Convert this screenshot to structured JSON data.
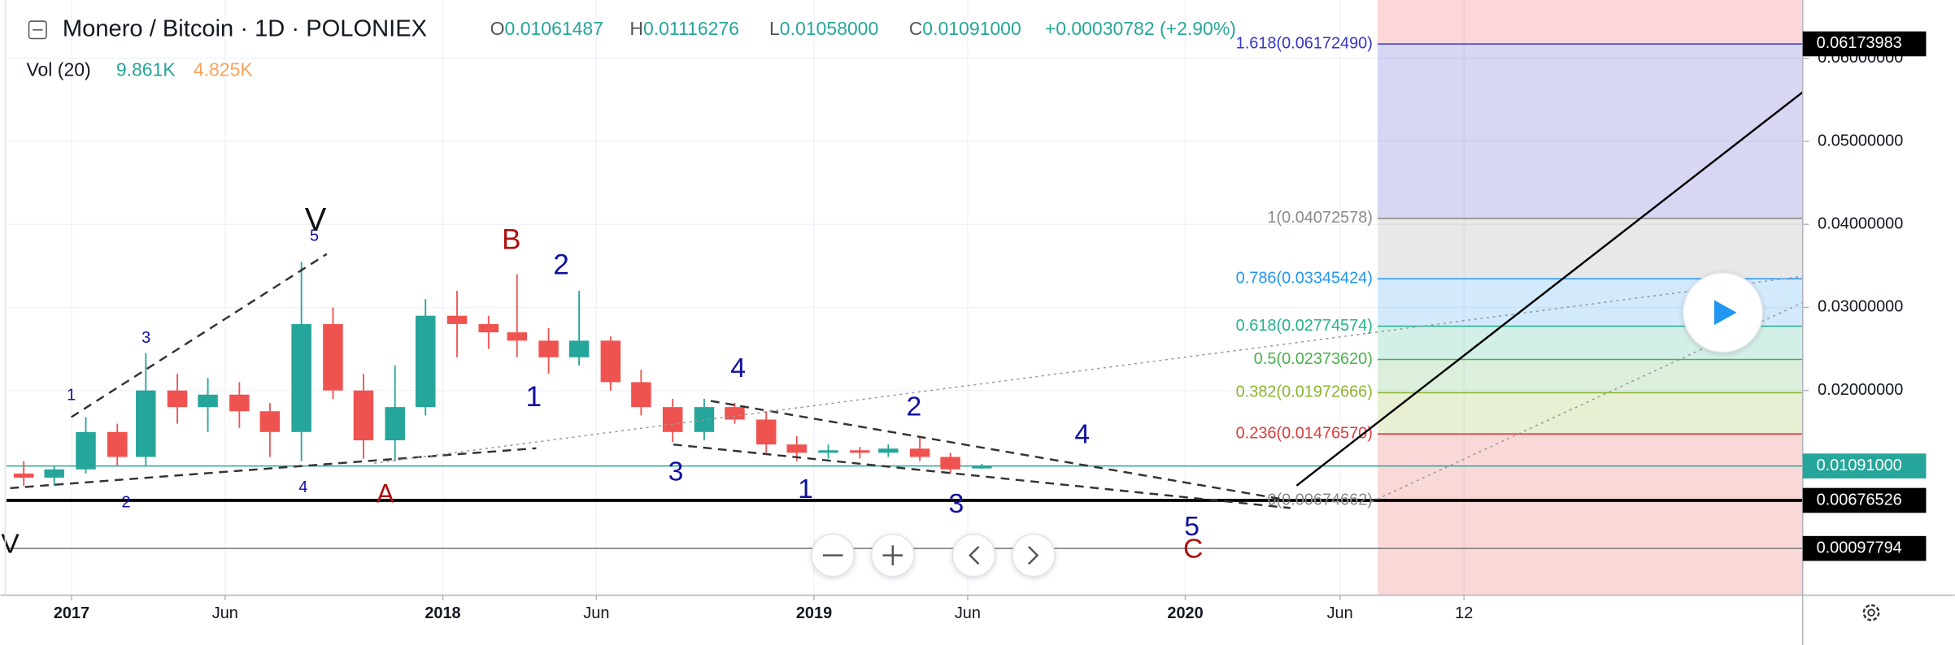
{
  "chart_data": {
    "type": "candlestick",
    "title": "Monero / Bitcoin · 1D · POLONIEX",
    "ohlc_header": [
      {
        "label": "O",
        "text": "0.01061487"
      },
      {
        "label": "H",
        "text": "0.01116276"
      },
      {
        "label": "L",
        "text": "0.01058000"
      },
      {
        "label": "C",
        "text": "0.01091000"
      }
    ],
    "change": "+0.00030782 (+2.90%)",
    "volume_legend": {
      "label": "Vol (20)",
      "values": [
        "9.861K",
        "4.825K"
      ]
    },
    "up_color": "#26a69a",
    "down_color": "#ef5350",
    "x": [
      "2016-11",
      "2016-12",
      "2017-01",
      "2017-02",
      "2017-03",
      "2017-04",
      "2017-05",
      "2017-06",
      "2017-07",
      "2017-08",
      "2017-09",
      "2017-10",
      "2017-11",
      "2017-12",
      "2018-01",
      "2018-02",
      "2018-03",
      "2018-04",
      "2018-05",
      "2018-06",
      "2018-07",
      "2018-08",
      "2018-09",
      "2018-10",
      "2018-11",
      "2018-12",
      "2019-01",
      "2019-02",
      "2019-03",
      "2019-04",
      "2019-05",
      "2019-06"
    ],
    "open": [
      0.01,
      0.0095,
      0.0105,
      0.015,
      0.012,
      0.02,
      0.018,
      0.0195,
      0.0175,
      0.015,
      0.028,
      0.02,
      0.014,
      0.018,
      0.029,
      0.028,
      0.027,
      0.026,
      0.024,
      0.026,
      0.021,
      0.018,
      0.015,
      0.018,
      0.0165,
      0.0135,
      0.0125,
      0.0128,
      0.0125,
      0.013,
      0.012,
      0.01061487
    ],
    "high": [
      0.0115,
      0.011,
      0.0168,
      0.016,
      0.0245,
      0.022,
      0.0215,
      0.021,
      0.0185,
      0.0355,
      0.03,
      0.022,
      0.023,
      0.031,
      0.032,
      0.029,
      0.034,
      0.0275,
      0.032,
      0.0265,
      0.0225,
      0.019,
      0.019,
      0.0185,
      0.0175,
      0.0145,
      0.0135,
      0.0132,
      0.0135,
      0.0145,
      0.0125,
      0.01116276
    ],
    "low": [
      0.0085,
      0.0085,
      0.01,
      0.011,
      0.011,
      0.016,
      0.015,
      0.0155,
      0.012,
      0.0115,
      0.019,
      0.0118,
      0.0115,
      0.017,
      0.024,
      0.025,
      0.024,
      0.022,
      0.023,
      0.02,
      0.017,
      0.0138,
      0.014,
      0.016,
      0.0125,
      0.0115,
      0.0118,
      0.0118,
      0.012,
      0.0115,
      0.01,
      0.01058
    ],
    "close": [
      0.0095,
      0.0105,
      0.015,
      0.012,
      0.02,
      0.018,
      0.0195,
      0.0175,
      0.015,
      0.028,
      0.02,
      0.014,
      0.018,
      0.029,
      0.028,
      0.027,
      0.026,
      0.024,
      0.026,
      0.021,
      0.018,
      0.015,
      0.018,
      0.0165,
      0.0135,
      0.0125,
      0.0128,
      0.0125,
      0.013,
      0.012,
      0.0105,
      0.01091
    ],
    "xlim": [
      "2016-10-29",
      "2021-08-30"
    ],
    "xticks": [
      {
        "value": "2017-01",
        "label": "2017"
      },
      {
        "value": "2017-06",
        "label": "Jun"
      },
      {
        "value": "2018-01",
        "label": "2018"
      },
      {
        "value": "2018-06",
        "label": "Jun"
      },
      {
        "value": "2019-01",
        "label": "2019"
      },
      {
        "value": "2019-06",
        "label": "Jun"
      },
      {
        "value": "2020-01",
        "label": "2020"
      },
      {
        "value": "2020-06",
        "label": "Jun"
      },
      {
        "value": "2020-10",
        "label": "12"
      }
    ],
    "ylim": [
      -0.00465,
      0.06702
    ],
    "yticks": [
      {
        "value": 0.02,
        "label": "0.02000000"
      },
      {
        "value": 0.03,
        "label": "0.03000000"
      },
      {
        "value": 0.04,
        "label": "0.04000000"
      },
      {
        "value": 0.05,
        "label": "0.05000000"
      },
      {
        "value": 0.06,
        "label": "0.06000000"
      }
    ],
    "grid": true,
    "fibonacci": [
      {
        "label": "1.618(0.06172490)",
        "value": 0.0617249,
        "color": "#3535c8"
      },
      {
        "label": "1(0.04072578)",
        "value": 0.04072578,
        "color": "#8a8a8a"
      },
      {
        "label": "0.786(0.03345424)",
        "value": 0.03345424,
        "color": "#2196f3"
      },
      {
        "label": "0.618(0.02774574)",
        "value": 0.02774574,
        "color": "#22b28c"
      },
      {
        "label": "0.5(0.02373620)",
        "value": 0.0237362,
        "color": "#4caf50"
      },
      {
        "label": "0.382(0.01972666)",
        "value": 0.01972666,
        "color": "#8bb52a"
      },
      {
        "label": "0.236(0.01476570)",
        "value": 0.0147657,
        "color": "#e03a3a"
      },
      {
        "label": "0(0.00674662)",
        "value": 0.00674662,
        "color": "#8a8a8a"
      }
    ],
    "price_lines": [
      {
        "label": "0.06173983",
        "value": 0.06173983,
        "color": "#000000",
        "line": false
      },
      {
        "label": "0.01091000",
        "value": 0.01091,
        "color": "#26a69a",
        "line": true
      },
      {
        "label": "0.00676526",
        "value": 0.00676526,
        "color": "#000000",
        "line": true
      },
      {
        "label": "0.00097794",
        "value": 0.00097794,
        "color": "#000000",
        "line": true
      }
    ],
    "annotations": [
      {
        "text": "1",
        "color": "#1010a0"
      },
      {
        "text": "3",
        "color": "#1010a0"
      },
      {
        "text": "2",
        "color": "#1010a0"
      },
      {
        "text": "4",
        "color": "#1010a0"
      },
      {
        "text": "5",
        "color": "#1010a0"
      },
      {
        "text": "V",
        "color": "#111111"
      },
      {
        "text": "B",
        "color": "#b01010"
      },
      {
        "text": "2",
        "color": "#1010a0"
      },
      {
        "text": "1",
        "color": "#1010a0"
      },
      {
        "text": "A",
        "color": "#b01010"
      },
      {
        "text": "4",
        "color": "#1010a0"
      },
      {
        "text": "3",
        "color": "#1010a0"
      },
      {
        "text": "1",
        "color": "#1010a0"
      },
      {
        "text": "2",
        "color": "#1010a0"
      },
      {
        "text": "3",
        "color": "#1010a0"
      },
      {
        "text": "4",
        "color": "#1010a0"
      },
      {
        "text": "5",
        "color": "#1010a0"
      },
      {
        "text": "C",
        "color": "#b01010"
      },
      {
        "text": "V",
        "color": "#111111"
      }
    ]
  }
}
